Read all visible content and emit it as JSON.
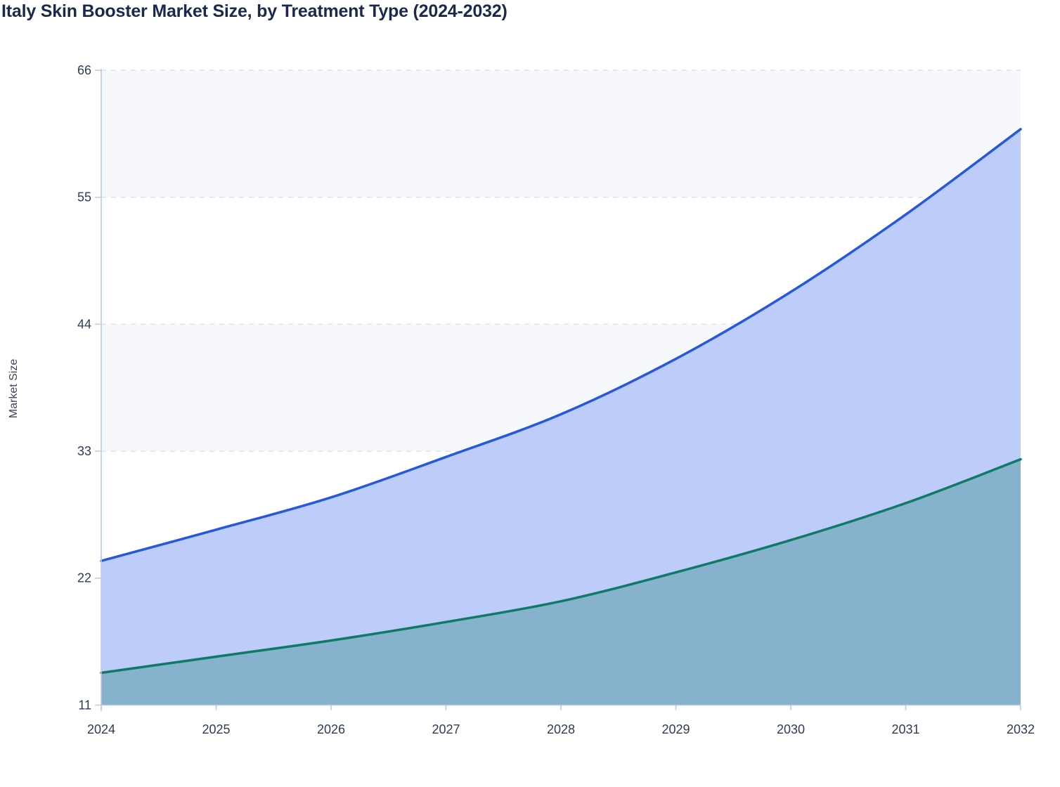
{
  "page": {
    "background": "#ffffff"
  },
  "chart_data": {
    "type": "area",
    "title": "Italy Skin Booster Market Size, by Treatment Type (2024-2032)",
    "xlabel": "",
    "ylabel": "Market Size",
    "x": [
      2024,
      2025,
      2026,
      2027,
      2028,
      2029,
      2030,
      2031,
      2032
    ],
    "series": [
      {
        "name": "blue-upper-line",
        "line_color": "#2458de",
        "fill_color": "#bdccf8",
        "values": [
          23.5,
          26.2,
          29.0,
          32.5,
          36.2,
          41.0,
          46.8,
          53.5,
          60.9
        ]
      },
      {
        "name": "teal-lower-line",
        "line_color": "#0e7b66",
        "fill_color": "#86b2cd",
        "values": [
          13.8,
          15.2,
          16.6,
          18.2,
          20.0,
          22.5,
          25.3,
          28.5,
          32.3
        ]
      }
    ],
    "ylim": [
      11,
      66
    ],
    "yticks": [
      11,
      22,
      33,
      44,
      55,
      66
    ],
    "grid": "horizontal-dashed",
    "legend": "none",
    "style": {
      "title_color": "#1b2a4c",
      "ylabel_color": "#3b4659",
      "tick_label_color": "#2e3c59",
      "axis_color": "#b9c9f1",
      "grid_color": "#dce3f0",
      "y_stub_color": "#c5ccd9",
      "band_colors": [
        "#f7f8fc",
        "#ffffff"
      ]
    }
  }
}
